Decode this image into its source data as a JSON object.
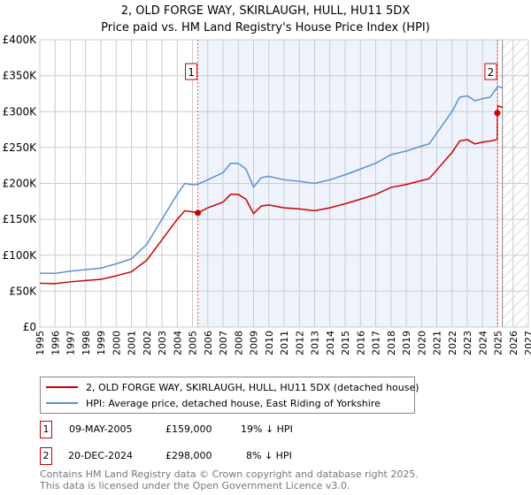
{
  "chart_data": {
    "type": "line",
    "title": "2, OLD FORGE WAY, SKIRLAUGH, HULL, HU11 5DX",
    "subtitle": "Price paid vs. HM Land Registry's House Price Index (HPI)",
    "xlim": [
      1995,
      2027
    ],
    "ylim": [
      0,
      400000
    ],
    "x_ticks": [
      "1995",
      "1996",
      "1997",
      "1998",
      "1999",
      "2000",
      "2001",
      "2002",
      "2003",
      "2004",
      "2005",
      "2006",
      "2007",
      "2008",
      "2009",
      "2010",
      "2011",
      "2012",
      "2013",
      "2014",
      "2015",
      "2016",
      "2017",
      "2018",
      "2019",
      "2020",
      "2021",
      "2022",
      "2023",
      "2024",
      "2025",
      "2026",
      "2027"
    ],
    "y_ticks": [
      {
        "v": 0,
        "l": "£0"
      },
      {
        "v": 50000,
        "l": "£50K"
      },
      {
        "v": 100000,
        "l": "£100K"
      },
      {
        "v": 150000,
        "l": "£150K"
      },
      {
        "v": 200000,
        "l": "£200K"
      },
      {
        "v": 250000,
        "l": "£250K"
      },
      {
        "v": 300000,
        "l": "£300K"
      },
      {
        "v": 350000,
        "l": "£350K"
      },
      {
        "v": 400000,
        "l": "£400K"
      }
    ],
    "series": [
      {
        "name": "2, OLD FORGE WAY, SKIRLAUGH, HULL, HU11 5DX (detached house)",
        "color": "#cc0000",
        "x": [
          1995,
          1996,
          1997,
          1998,
          1999,
          2000,
          2001,
          2002,
          2003,
          2004,
          2004.5,
          2005,
          2005.35,
          2006,
          2007,
          2007.5,
          2008,
          2008.5,
          2009,
          2009.5,
          2010,
          2011,
          2012,
          2013,
          2014,
          2015,
          2016,
          2017,
          2018,
          2019,
          2020,
          2020.5,
          2021,
          2021.5,
          2022,
          2022.5,
          2023,
          2023.5,
          2024,
          2024.5,
          2024.96,
          2024.97,
          2025,
          2025.3
        ],
        "y": [
          61000,
          60500,
          63000,
          64800,
          66400,
          71300,
          77000,
          93000,
          121500,
          150000,
          162000,
          160500,
          159000,
          166000,
          174000,
          184700,
          184700,
          178000,
          158000,
          168500,
          170000,
          166000,
          164400,
          162000,
          166000,
          171700,
          178000,
          184700,
          194400,
          198500,
          204000,
          206500,
          218700,
          231000,
          243000,
          259000,
          261000,
          255000,
          257500,
          259000,
          261000,
          298000,
          308000,
          306000
        ]
      },
      {
        "name": "HPI: Average price, detached house, East Riding of Yorkshire",
        "color": "#5b8fd6",
        "x": [
          1995,
          1996,
          1997,
          1998,
          1999,
          2000,
          2001,
          2002,
          2003,
          2004,
          2004.5,
          2005,
          2005.35,
          2006,
          2007,
          2007.5,
          2008,
          2008.5,
          2009,
          2009.5,
          2010,
          2011,
          2012,
          2013,
          2014,
          2015,
          2016,
          2017,
          2018,
          2019,
          2020,
          2020.5,
          2021,
          2021.5,
          2022,
          2022.5,
          2023,
          2023.5,
          2024,
          2024.5,
          2025,
          2025.3
        ],
        "y": [
          75000,
          74700,
          77800,
          80000,
          82000,
          88000,
          95000,
          115000,
          150000,
          185000,
          200000,
          198000,
          199000,
          205000,
          215000,
          228000,
          228000,
          220000,
          195000,
          208000,
          210000,
          205000,
          203000,
          200000,
          205000,
          212000,
          220000,
          228000,
          240000,
          245000,
          252000,
          255000,
          270000,
          285000,
          300000,
          320000,
          322000,
          315000,
          318000,
          320000,
          335000,
          333000
        ]
      }
    ],
    "annotations": [
      {
        "label": "1",
        "x": 2005.35,
        "y": 159000
      },
      {
        "label": "2",
        "x": 2024.97,
        "y": 298000
      }
    ],
    "shaded_range": [
      2005.35,
      2024.97
    ],
    "forecast_hatch_from": 2025.3,
    "legend_placement": "below"
  },
  "table": [
    {
      "n": "1",
      "date": "09-MAY-2005",
      "price": "£159,000",
      "delta": "19% ↓ HPI"
    },
    {
      "n": "2",
      "date": "20-DEC-2024",
      "price": "£298,000",
      "delta": "8% ↓ HPI"
    }
  ],
  "footer": {
    "line1": "Contains HM Land Registry data © Crown copyright and database right 2025.",
    "line2": "This data is licensed under the Open Government Licence v3.0."
  }
}
